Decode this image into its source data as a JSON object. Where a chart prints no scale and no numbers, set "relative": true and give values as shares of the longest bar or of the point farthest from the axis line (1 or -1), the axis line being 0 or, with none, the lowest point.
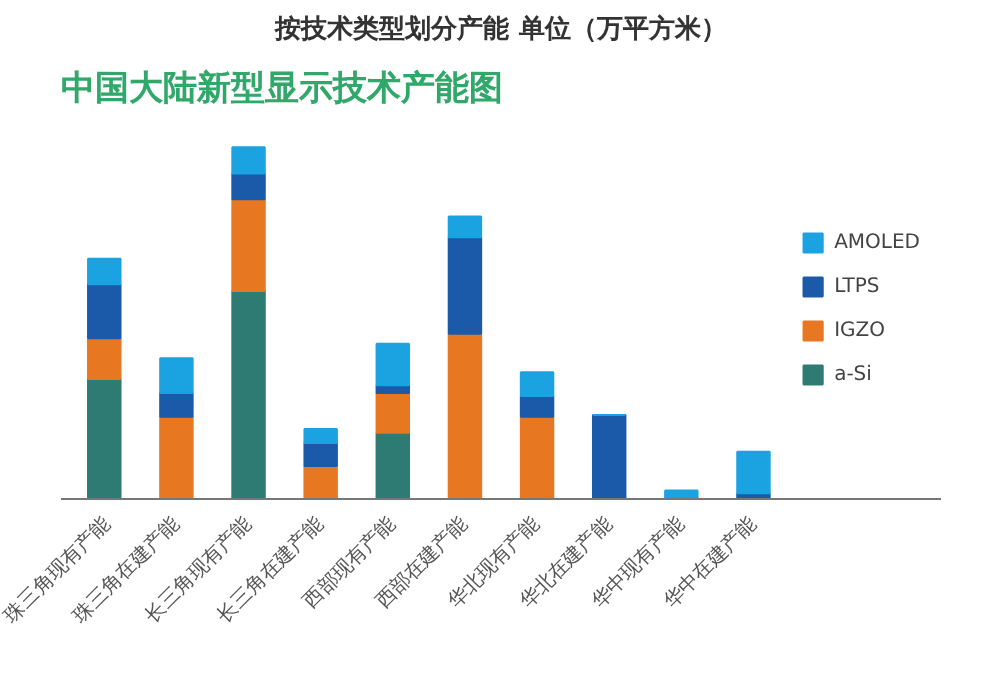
{
  "chart_data": {
    "type": "bar",
    "title": "中国大陆新型显示技术产能图",
    "subtitle": "按技术类型划分产能 单位（万平方米）",
    "stacked": true,
    "relative": true,
    "legend": "right",
    "grid": false,
    "categories": [
      "珠三角现有产能",
      "珠三角在建产能",
      "长三角现有产能",
      "长三角在建产能",
      "西部现有产能",
      "西部在建产能",
      "华北现有产能",
      "华北在建产能",
      "华中现有产能",
      "华中在建产能"
    ],
    "series": [
      {
        "name": "a-Si",
        "color": "#2e7b73",
        "values": [
          0.341,
          0,
          0.591,
          0,
          0.188,
          0,
          0,
          0,
          0,
          0
        ]
      },
      {
        "name": "IGZO",
        "color": "#e87722",
        "values": [
          0.116,
          0.234,
          0.261,
          0.094,
          0.113,
          0.47,
          0.234,
          0,
          0,
          0
        ]
      },
      {
        "name": "LTPS",
        "color": "#1a5aa8",
        "values": [
          0.153,
          0.067,
          0.073,
          0.065,
          0.022,
          0.274,
          0.059,
          0.239,
          0,
          0.016
        ]
      },
      {
        "name": "AMOLED",
        "color": "#1aa3e0",
        "values": [
          0.073,
          0.099,
          0.075,
          0.04,
          0.118,
          0.059,
          0.067,
          0,
          0.024,
          0.118
        ]
      }
    ]
  }
}
